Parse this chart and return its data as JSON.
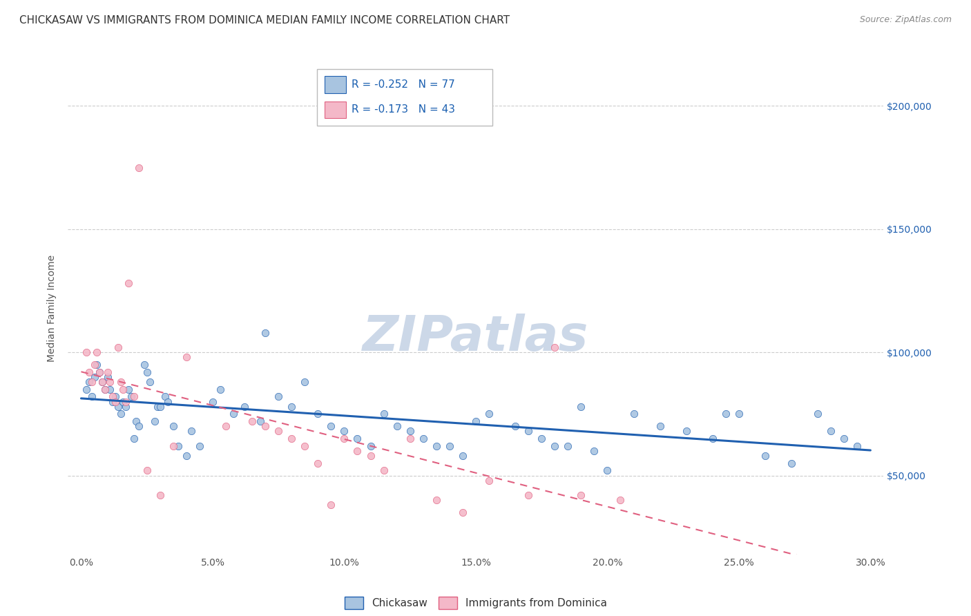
{
  "title": "CHICKASAW VS IMMIGRANTS FROM DOMINICA MEDIAN FAMILY INCOME CORRELATION CHART",
  "source": "Source: ZipAtlas.com",
  "ylabel": "Median Family Income",
  "ytick_labels": [
    "$50,000",
    "$100,000",
    "$150,000",
    "$200,000"
  ],
  "ytick_vals": [
    50000,
    100000,
    150000,
    200000
  ],
  "r_chickasaw": -0.252,
  "n_chickasaw": 77,
  "r_dominica": -0.173,
  "n_dominica": 43,
  "chickasaw_color": "#a8c4e0",
  "dominica_color": "#f4b8c8",
  "trendline_chickasaw_color": "#2060b0",
  "trendline_dominica_color": "#e06080",
  "watermark_color": "#ccd8e8",
  "background_color": "#ffffff",
  "grid_color": "#cccccc",
  "chickasaw_x": [
    0.2,
    0.3,
    0.4,
    0.5,
    0.6,
    0.7,
    0.8,
    0.9,
    1.0,
    1.1,
    1.2,
    1.3,
    1.4,
    1.5,
    1.6,
    1.7,
    1.8,
    1.9,
    2.0,
    2.1,
    2.2,
    2.4,
    2.5,
    2.6,
    2.8,
    2.9,
    3.0,
    3.2,
    3.3,
    3.5,
    3.7,
    4.0,
    4.2,
    4.5,
    5.0,
    5.3,
    5.8,
    6.2,
    6.8,
    7.0,
    7.5,
    8.0,
    8.5,
    9.0,
    9.5,
    10.0,
    10.5,
    11.0,
    11.5,
    12.0,
    12.5,
    13.0,
    13.5,
    14.0,
    14.5,
    15.0,
    15.5,
    16.5,
    17.0,
    17.5,
    18.0,
    18.5,
    19.0,
    19.5,
    20.0,
    21.0,
    22.0,
    23.0,
    24.0,
    24.5,
    25.0,
    26.0,
    27.0,
    28.0,
    28.5,
    29.0,
    29.5
  ],
  "chickasaw_y": [
    85000,
    88000,
    82000,
    90000,
    95000,
    92000,
    88000,
    85000,
    90000,
    85000,
    80000,
    82000,
    78000,
    75000,
    80000,
    78000,
    85000,
    82000,
    65000,
    72000,
    70000,
    95000,
    92000,
    88000,
    72000,
    78000,
    78000,
    82000,
    80000,
    70000,
    62000,
    58000,
    68000,
    62000,
    80000,
    85000,
    75000,
    78000,
    72000,
    108000,
    82000,
    78000,
    88000,
    75000,
    70000,
    68000,
    65000,
    62000,
    75000,
    70000,
    68000,
    65000,
    62000,
    62000,
    58000,
    72000,
    75000,
    70000,
    68000,
    65000,
    62000,
    62000,
    78000,
    60000,
    52000,
    75000,
    70000,
    68000,
    65000,
    75000,
    75000,
    58000,
    55000,
    75000,
    68000,
    65000,
    62000
  ],
  "dominica_x": [
    0.2,
    0.3,
    0.4,
    0.5,
    0.6,
    0.7,
    0.8,
    0.9,
    1.0,
    1.1,
    1.2,
    1.3,
    1.4,
    1.5,
    1.6,
    1.7,
    1.8,
    2.0,
    2.2,
    2.5,
    3.0,
    3.5,
    4.0,
    5.5,
    6.5,
    7.0,
    7.5,
    8.0,
    8.5,
    9.0,
    9.5,
    10.0,
    10.5,
    11.0,
    11.5,
    12.5,
    13.5,
    14.5,
    15.5,
    17.0,
    18.0,
    19.0,
    20.5
  ],
  "dominica_y": [
    100000,
    92000,
    88000,
    95000,
    100000,
    92000,
    88000,
    85000,
    92000,
    88000,
    82000,
    80000,
    102000,
    88000,
    85000,
    80000,
    128000,
    82000,
    175000,
    52000,
    42000,
    62000,
    98000,
    70000,
    72000,
    70000,
    68000,
    65000,
    62000,
    55000,
    38000,
    65000,
    60000,
    58000,
    52000,
    65000,
    40000,
    35000,
    48000,
    42000,
    102000,
    42000,
    40000
  ],
  "title_fontsize": 11,
  "axis_label_fontsize": 10,
  "tick_fontsize": 10,
  "legend_fontsize": 11,
  "watermark_fontsize": 52
}
